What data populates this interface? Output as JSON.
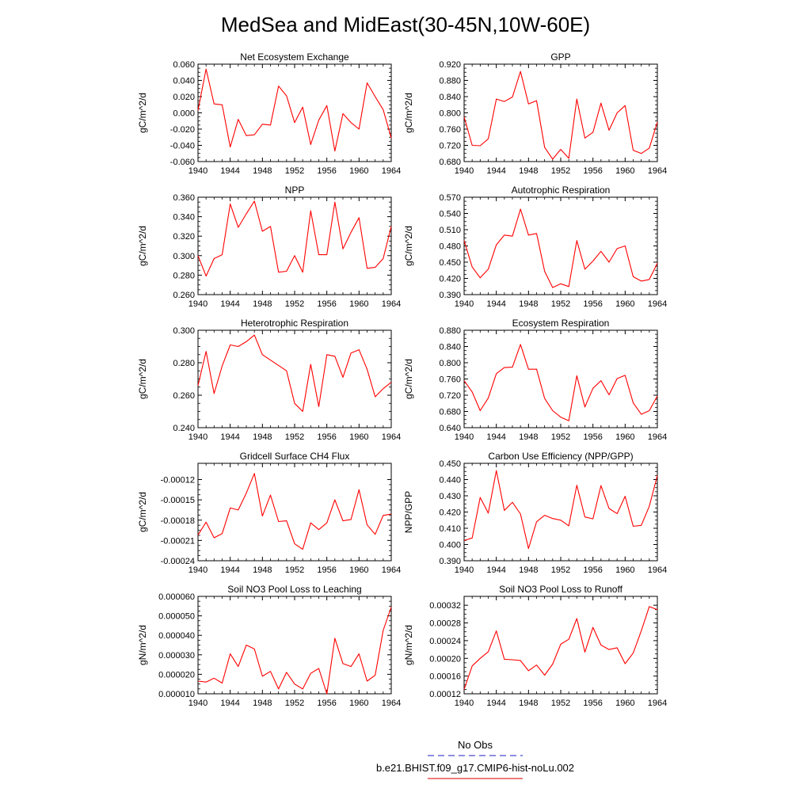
{
  "figure_title": "MedSea and MidEast(30-45N,10W-60E)",
  "legend": {
    "entries": [
      {
        "label": "No Obs",
        "color": "#4a4ad0",
        "dash": true
      },
      {
        "label": "b.e21.BHIST.f09_g17.CMIP6-hist-noLu.002",
        "color": "#e0302a",
        "dash": false
      }
    ]
  },
  "chart_data": [
    {
      "type": "line",
      "title": "Net Ecosystem Exchange",
      "ylabel": "gC/m^2/d",
      "xlabel": "",
      "xlim": [
        1940,
        1964
      ],
      "ylim": [
        -0.06,
        0.06
      ],
      "xticks": [
        1940,
        1944,
        1948,
        1952,
        1956,
        1960,
        1964
      ],
      "xtick_labels": [
        "1940",
        "1944",
        "1948",
        "1952",
        "1956",
        "1960",
        "1964"
      ],
      "yticks": [
        -0.06,
        -0.04,
        -0.02,
        0.0,
        0.02,
        0.04,
        0.06
      ],
      "ytick_labels": [
        "-0.060",
        "-0.040",
        "-0.020",
        "0.000",
        "0.020",
        "0.040",
        "0.060"
      ],
      "series": [
        {
          "color": "#ff0000",
          "x": [
            1940,
            1941,
            1942,
            1943,
            1944,
            1945,
            1946,
            1947,
            1948,
            1949,
            1950,
            1951,
            1952,
            1953,
            1954,
            1955,
            1956,
            1957,
            1958,
            1959,
            1960,
            1961,
            1962,
            1963,
            1964
          ],
          "values": [
            0.003,
            0.054,
            0.011,
            0.01,
            -0.042,
            -0.008,
            -0.028,
            -0.027,
            -0.014,
            -0.015,
            0.033,
            0.021,
            -0.012,
            0.007,
            -0.039,
            -0.009,
            0.009,
            -0.047,
            -0.001,
            -0.012,
            -0.02,
            0.037,
            0.02,
            0.004,
            -0.031
          ]
        }
      ]
    },
    {
      "type": "line",
      "title": "GPP",
      "ylabel": "gC/m^2/d",
      "xlabel": "",
      "xlim": [
        1940,
        1964
      ],
      "ylim": [
        0.68,
        0.92
      ],
      "xticks": [
        1940,
        1944,
        1948,
        1952,
        1956,
        1960,
        1964
      ],
      "xtick_labels": [
        "1940",
        "1944",
        "1948",
        "1952",
        "1956",
        "1960",
        "1964"
      ],
      "yticks": [
        0.68,
        0.72,
        0.76,
        0.8,
        0.84,
        0.88,
        0.92
      ],
      "ytick_labels": [
        "0.680",
        "0.720",
        "0.760",
        "0.800",
        "0.840",
        "0.880",
        "0.920"
      ],
      "series": [
        {
          "color": "#ff0000",
          "x": [
            1940,
            1941,
            1942,
            1943,
            1944,
            1945,
            1946,
            1947,
            1948,
            1949,
            1950,
            1951,
            1952,
            1953,
            1954,
            1955,
            1956,
            1957,
            1958,
            1959,
            1960,
            1961,
            1962,
            1963,
            1964
          ],
          "values": [
            0.79,
            0.72,
            0.719,
            0.736,
            0.834,
            0.828,
            0.839,
            0.902,
            0.822,
            0.83,
            0.715,
            0.686,
            0.71,
            0.688,
            0.834,
            0.738,
            0.752,
            0.824,
            0.757,
            0.8,
            0.818,
            0.708,
            0.7,
            0.713,
            0.777
          ]
        }
      ]
    },
    {
      "type": "line",
      "title": "NPP",
      "ylabel": "gC/m^2/d",
      "xlabel": "",
      "xlim": [
        1940,
        1964
      ],
      "ylim": [
        0.26,
        0.36
      ],
      "xticks": [
        1940,
        1944,
        1948,
        1952,
        1956,
        1960,
        1964
      ],
      "xtick_labels": [
        "1940",
        "1944",
        "1948",
        "1952",
        "1956",
        "1960",
        "1964"
      ],
      "yticks": [
        0.26,
        0.28,
        0.3,
        0.32,
        0.34,
        0.36
      ],
      "ytick_labels": [
        "0.260",
        "0.280",
        "0.300",
        "0.320",
        "0.340",
        "0.360"
      ],
      "series": [
        {
          "color": "#ff0000",
          "x": [
            1940,
            1941,
            1942,
            1943,
            1944,
            1945,
            1946,
            1947,
            1948,
            1949,
            1950,
            1951,
            1952,
            1953,
            1954,
            1955,
            1956,
            1957,
            1958,
            1959,
            1960,
            1961,
            1962,
            1963,
            1964
          ],
          "values": [
            0.3,
            0.279,
            0.297,
            0.301,
            0.353,
            0.329,
            0.343,
            0.356,
            0.325,
            0.33,
            0.283,
            0.284,
            0.3,
            0.283,
            0.346,
            0.301,
            0.301,
            0.355,
            0.307,
            0.324,
            0.339,
            0.287,
            0.288,
            0.297,
            0.33
          ]
        }
      ]
    },
    {
      "type": "line",
      "title": "Autotrophic Respiration",
      "ylabel": "gC/m^2/d",
      "xlabel": "",
      "xlim": [
        1940,
        1964
      ],
      "ylim": [
        0.39,
        0.57
      ],
      "xticks": [
        1940,
        1944,
        1948,
        1952,
        1956,
        1960,
        1964
      ],
      "xtick_labels": [
        "1940",
        "1944",
        "1948",
        "1952",
        "1956",
        "1960",
        "1964"
      ],
      "yticks": [
        0.39,
        0.42,
        0.45,
        0.48,
        0.51,
        0.54,
        0.57
      ],
      "ytick_labels": [
        "0.390",
        "0.420",
        "0.450",
        "0.480",
        "0.510",
        "0.540",
        "0.570"
      ],
      "series": [
        {
          "color": "#ff0000",
          "x": [
            1940,
            1941,
            1942,
            1943,
            1944,
            1945,
            1946,
            1947,
            1948,
            1949,
            1950,
            1951,
            1952,
            1953,
            1954,
            1955,
            1956,
            1957,
            1958,
            1959,
            1960,
            1961,
            1962,
            1963,
            1964
          ],
          "values": [
            0.49,
            0.441,
            0.421,
            0.437,
            0.482,
            0.5,
            0.498,
            0.548,
            0.5,
            0.503,
            0.433,
            0.403,
            0.41,
            0.405,
            0.49,
            0.437,
            0.452,
            0.47,
            0.45,
            0.475,
            0.48,
            0.423,
            0.415,
            0.418,
            0.448
          ]
        }
      ]
    },
    {
      "type": "line",
      "title": "Heterotrophic Respiration",
      "ylabel": "gC/m^2/d",
      "xlabel": "",
      "xlim": [
        1940,
        1964
      ],
      "ylim": [
        0.24,
        0.3
      ],
      "xticks": [
        1940,
        1944,
        1948,
        1952,
        1956,
        1960,
        1964
      ],
      "xtick_labels": [
        "1940",
        "1944",
        "1948",
        "1952",
        "1956",
        "1960",
        "1964"
      ],
      "yticks": [
        0.24,
        0.26,
        0.28,
        0.3
      ],
      "ytick_labels": [
        "0.240",
        "0.260",
        "0.280",
        "0.300"
      ],
      "series": [
        {
          "color": "#ff0000",
          "x": [
            1940,
            1941,
            1942,
            1943,
            1944,
            1945,
            1946,
            1947,
            1948,
            1951,
            1952,
            1953,
            1954,
            1955,
            1956,
            1957,
            1958,
            1959,
            1960,
            1961,
            1962,
            1963,
            1964
          ],
          "values": [
            0.266,
            0.287,
            0.261,
            0.278,
            0.291,
            0.29,
            0.293,
            0.297,
            0.285,
            0.275,
            0.255,
            0.25,
            0.279,
            0.253,
            0.285,
            0.284,
            0.271,
            0.286,
            0.288,
            0.276,
            0.259,
            0.264,
            0.268
          ]
        }
      ]
    },
    {
      "type": "line",
      "title": "Ecosystem Respiration",
      "ylabel": "gC/m^2/d",
      "xlabel": "",
      "xlim": [
        1940,
        1964
      ],
      "ylim": [
        0.64,
        0.88
      ],
      "xticks": [
        1940,
        1944,
        1948,
        1952,
        1956,
        1960,
        1964
      ],
      "xtick_labels": [
        "1940",
        "1944",
        "1948",
        "1952",
        "1956",
        "1960",
        "1964"
      ],
      "yticks": [
        0.64,
        0.68,
        0.72,
        0.76,
        0.8,
        0.84,
        0.88
      ],
      "ytick_labels": [
        "0.640",
        "0.680",
        "0.720",
        "0.760",
        "0.800",
        "0.840",
        "0.880"
      ],
      "series": [
        {
          "color": "#ff0000",
          "x": [
            1940,
            1941,
            1942,
            1943,
            1944,
            1945,
            1946,
            1947,
            1948,
            1949,
            1950,
            1951,
            1952,
            1953,
            1954,
            1955,
            1956,
            1957,
            1958,
            1959,
            1960,
            1961,
            1962,
            1963,
            1964
          ],
          "values": [
            0.756,
            0.728,
            0.682,
            0.713,
            0.773,
            0.788,
            0.789,
            0.845,
            0.784,
            0.784,
            0.712,
            0.682,
            0.666,
            0.657,
            0.768,
            0.691,
            0.737,
            0.756,
            0.721,
            0.761,
            0.769,
            0.701,
            0.673,
            0.682,
            0.718
          ]
        }
      ]
    },
    {
      "type": "line",
      "title": "Gridcell Surface CH4 Flux",
      "ylabel": "gC/m^2/d",
      "xlabel": "",
      "xlim": [
        1940,
        1964
      ],
      "ylim": [
        -0.00024,
        -9.6e-05
      ],
      "xticks": [
        1940,
        1944,
        1948,
        1952,
        1956,
        1960,
        1964
      ],
      "xtick_labels": [
        "1940",
        "1944",
        "1948",
        "1952",
        "1956",
        "1960",
        "1964"
      ],
      "yticks": [
        -0.00024,
        -0.00021,
        -0.00018,
        -0.00015,
        -0.00012
      ],
      "ytick_labels": [
        "-0.00024",
        "-0.00021",
        "-0.00018",
        "-0.00015",
        "-0.00012"
      ],
      "series": [
        {
          "color": "#ff0000",
          "x": [
            1940,
            1941,
            1942,
            1943,
            1944,
            1945,
            1946,
            1947,
            1948,
            1949,
            1950,
            1951,
            1952,
            1953,
            1954,
            1955,
            1956,
            1957,
            1958,
            1959,
            1960,
            1961,
            1962,
            1963,
            1964
          ],
          "values": [
            -0.000202,
            -0.000183,
            -0.000206,
            -0.0002,
            -0.000162,
            -0.000165,
            -0.00014,
            -0.000111,
            -0.000174,
            -0.000143,
            -0.000182,
            -0.000181,
            -0.000215,
            -0.000223,
            -0.000184,
            -0.000194,
            -0.000184,
            -0.00015,
            -0.000181,
            -0.000179,
            -0.000135,
            -0.000187,
            -0.000201,
            -0.000173,
            -0.000171
          ]
        }
      ]
    },
    {
      "type": "line",
      "title": "Carbon Use Efficiency (NPP/GPP)",
      "ylabel": "NPP/GPP",
      "xlabel": "",
      "xlim": [
        1940,
        1964
      ],
      "ylim": [
        0.39,
        0.45
      ],
      "xticks": [
        1940,
        1944,
        1948,
        1952,
        1956,
        1960,
        1964
      ],
      "xtick_labels": [
        "1940",
        "1944",
        "1948",
        "1952",
        "1956",
        "1960",
        "1964"
      ],
      "yticks": [
        0.39,
        0.4,
        0.41,
        0.42,
        0.43,
        0.44,
        0.45
      ],
      "ytick_labels": [
        "0.390",
        "0.400",
        "0.410",
        "0.420",
        "0.430",
        "0.440",
        "0.450"
      ],
      "series": [
        {
          "color": "#ff0000",
          "x": [
            1940,
            1941,
            1942,
            1943,
            1944,
            1945,
            1946,
            1947,
            1948,
            1949,
            1950,
            1951,
            1952,
            1953,
            1954,
            1955,
            1956,
            1957,
            1958,
            1959,
            1960,
            1961,
            1962,
            1963,
            1964
          ],
          "values": [
            0.4025,
            0.404,
            0.429,
            0.4193,
            0.4455,
            0.421,
            0.426,
            0.4188,
            0.3975,
            0.414,
            0.418,
            0.416,
            0.415,
            0.4115,
            0.4365,
            0.417,
            0.4158,
            0.4363,
            0.4222,
            0.419,
            0.4297,
            0.4112,
            0.4118,
            0.4235,
            0.4425
          ]
        }
      ]
    },
    {
      "type": "line",
      "title": "Soil NO3 Pool Loss to Leaching",
      "ylabel": "gN/m^2/d",
      "xlabel": "",
      "xlim": [
        1940,
        1964
      ],
      "ylim": [
        1e-05,
        6e-05
      ],
      "xticks": [
        1940,
        1944,
        1948,
        1952,
        1956,
        1960,
        1964
      ],
      "xtick_labels": [
        "1940",
        "1944",
        "1948",
        "1952",
        "1956",
        "1960",
        "1964"
      ],
      "yticks": [
        1e-05,
        2e-05,
        3e-05,
        4e-05,
        5e-05,
        6e-05
      ],
      "ytick_labels": [
        "0.000010",
        "0.000020",
        "0.000030",
        "0.000040",
        "0.000050",
        "0.000060"
      ],
      "series": [
        {
          "color": "#ff0000",
          "x": [
            1940,
            1941,
            1942,
            1943,
            1944,
            1945,
            1946,
            1947,
            1948,
            1949,
            1950,
            1951,
            1952,
            1953,
            1954,
            1955,
            1956,
            1957,
            1958,
            1959,
            1960,
            1961,
            1962,
            1963,
            1964
          ],
          "values": [
            1.65e-05,
            1.6e-05,
            1.8e-05,
            1.55e-05,
            3.05e-05,
            2.4e-05,
            3.5e-05,
            3.3e-05,
            1.9e-05,
            2.15e-05,
            1.25e-05,
            2.1e-05,
            1.5e-05,
            1.25e-05,
            2.05e-05,
            2.3e-05,
            1e-05,
            3.85e-05,
            2.55e-05,
            2.4e-05,
            3.05e-05,
            1.65e-05,
            1.95e-05,
            4.25e-05,
            5.45e-05
          ]
        }
      ]
    },
    {
      "type": "line",
      "title": "Soil NO3 Pool Loss to Runoff",
      "ylabel": "gN/m^2/d",
      "xlabel": "",
      "xlim": [
        1940,
        1964
      ],
      "ylim": [
        0.00012,
        0.00034
      ],
      "xticks": [
        1940,
        1944,
        1948,
        1952,
        1956,
        1960,
        1964
      ],
      "xtick_labels": [
        "1940",
        "1944",
        "1948",
        "1952",
        "1956",
        "1960",
        "1964"
      ],
      "yticks": [
        0.00012,
        0.00016,
        0.0002,
        0.00024,
        0.00028,
        0.00032
      ],
      "ytick_labels": [
        "0.00012",
        "0.00016",
        "0.00020",
        "0.00024",
        "0.00028",
        "0.00032"
      ],
      "series": [
        {
          "color": "#ff0000",
          "x": [
            1940,
            1941,
            1942,
            1943,
            1944,
            1945,
            1946,
            1947,
            1948,
            1949,
            1950,
            1951,
            1952,
            1953,
            1954,
            1955,
            1956,
            1957,
            1958,
            1959,
            1960,
            1961,
            1962,
            1963,
            1964
          ],
          "values": [
            0.00013,
            0.000183,
            0.0002,
            0.000215,
            0.000262,
            0.000198,
            0.000197,
            0.000195,
            0.000172,
            0.000185,
            0.000162,
            0.000187,
            0.000232,
            0.000243,
            0.00029,
            0.000214,
            0.00027,
            0.00023,
            0.00022,
            0.000224,
            0.000188,
            0.000212,
            0.000262,
            0.000317,
            0.00031
          ]
        }
      ]
    }
  ]
}
